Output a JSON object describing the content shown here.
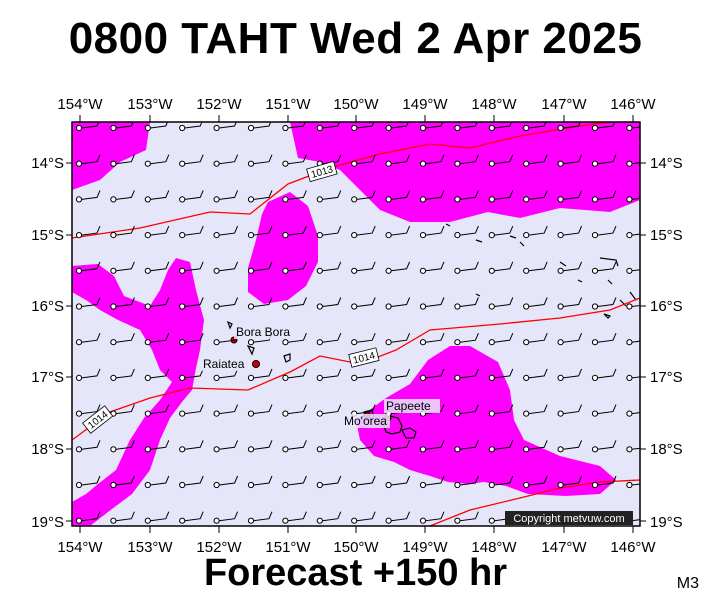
{
  "title": "0800 TAHT Wed 2 Apr 2025",
  "footer": "Forecast +150 hr",
  "model_tag": "M3",
  "copyright": "Copyright metvuw.com",
  "colors": {
    "background": "#e6e6fa",
    "rain": "#ff00ff",
    "isobar": "#ff0000",
    "island_fill": "#cc0000"
  },
  "axes": {
    "lon_labels": [
      "154°W",
      "153°W",
      "152°W",
      "151°W",
      "150°W",
      "149°W",
      "148°W",
      "147°W",
      "146°W"
    ],
    "lat_labels": [
      "14°S",
      "15°S",
      "16°S",
      "17°S",
      "18°S",
      "19°S"
    ]
  },
  "isobar_labels": [
    "1013",
    "1014",
    "1014"
  ],
  "places": [
    {
      "name": "Bora Bora",
      "lon": -151.75,
      "lat": -16.5
    },
    {
      "name": "Raiatea",
      "lon": -151.45,
      "lat": -16.82
    },
    {
      "name": "Papeete",
      "lon": -149.57,
      "lat": -17.53
    },
    {
      "name": "Mo'orea",
      "lon": -149.85,
      "lat": -17.53
    }
  ],
  "wind": {
    "symbol": "wind-barb",
    "grid_step_deg": 0.5
  }
}
